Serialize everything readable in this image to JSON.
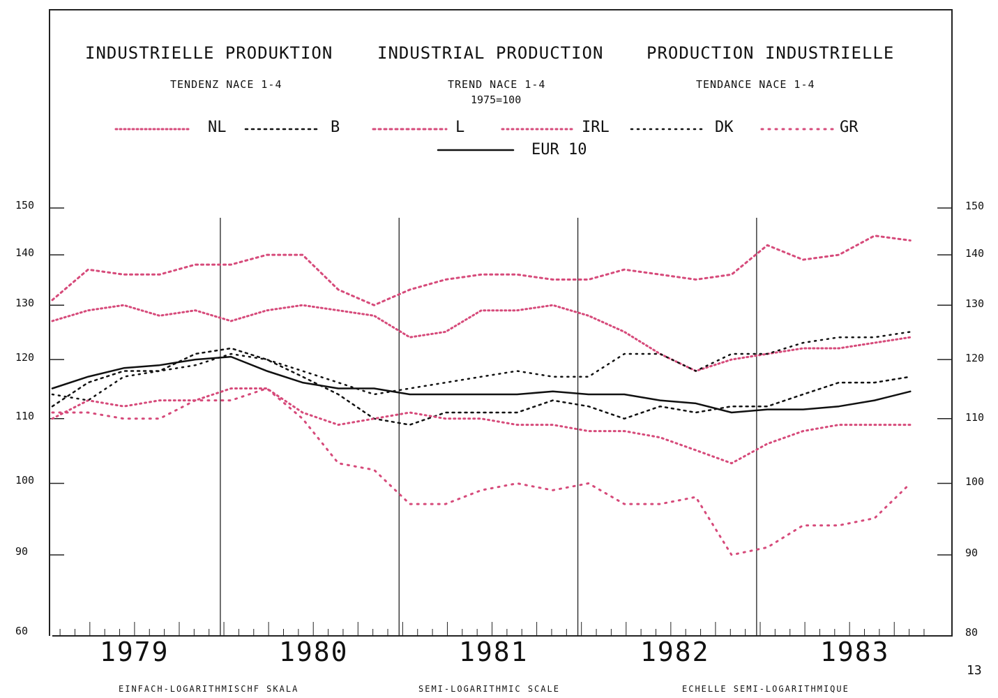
{
  "header": {
    "title_de": "INDUSTRIELLE PRODUKTION",
    "title_en": "INDUSTRIAL PRODUCTION",
    "title_fr": "PRODUCTION INDUSTRIELLE",
    "sub_de": "TENDENZ   NACE 1-4",
    "sub_en": "TREND   NACE 1-4",
    "sub_fr": "TENDANCE   NACE 1-4",
    "base": "1975=100"
  },
  "legend": {
    "nl": "NL",
    "b": "B",
    "l": "L",
    "irl": "IRL",
    "dk": "DK",
    "gr": "GR",
    "eur": "EUR 10"
  },
  "footer": {
    "de": "EINFACH-LOGARITHMISCHF SKALA",
    "en": "SEMI-LOGARITHMIC SCALE",
    "fr": "ECHELLE SEMI-LOGARITHMIQUE",
    "page": "13"
  },
  "axis": {
    "left_ticks": [
      "150",
      "140",
      "130",
      "120",
      "110",
      "100",
      "90",
      "60"
    ],
    "right_ticks": [
      "150",
      "140",
      "130",
      "120",
      "110",
      "100",
      "90",
      "80"
    ]
  },
  "colors": {
    "pink": "#d64a7a",
    "grey": "#8a8a8a",
    "black": "#111111"
  },
  "chart_data": {
    "type": "line",
    "title": "INDUSTRIAL PRODUCTION",
    "scale": "semi-logarithmic",
    "ylim": [
      90,
      150
    ],
    "x_categories": [
      "1979",
      "1980",
      "1981",
      "1982",
      "1983"
    ],
    "x_start": 1979.0,
    "x_end": 1983.83,
    "series": [
      {
        "name": "NL",
        "style": "pink-dotted",
        "x": [
          1979.0,
          1979.2,
          1979.4,
          1979.6,
          1979.8,
          1980.0,
          1980.2,
          1980.4,
          1980.6,
          1980.8,
          1981.0,
          1981.2,
          1981.4,
          1981.6,
          1981.8,
          1982.0,
          1982.2,
          1982.4,
          1982.6,
          1982.8,
          1983.0,
          1983.2,
          1983.4,
          1983.6,
          1983.8
        ],
        "values": [
          127,
          129,
          130,
          128,
          129,
          127,
          129,
          130,
          129,
          128,
          124,
          125,
          129,
          129,
          130,
          128,
          125,
          121,
          118,
          120,
          121,
          122,
          122,
          123,
          124
        ]
      },
      {
        "name": "B",
        "style": "black-cross",
        "x": [
          1979.0,
          1979.2,
          1979.4,
          1979.6,
          1979.8,
          1980.0,
          1980.2,
          1980.4,
          1980.6,
          1980.8,
          1981.0,
          1981.2,
          1981.4,
          1981.6,
          1981.8,
          1982.0,
          1982.2,
          1982.4,
          1982.6,
          1982.8,
          1983.0,
          1983.2,
          1983.4,
          1983.6,
          1983.8
        ],
        "values": [
          112,
          116,
          118,
          118,
          121,
          122,
          120,
          117,
          114,
          110,
          109,
          111,
          111,
          111,
          113,
          112,
          110,
          112,
          111,
          112,
          112,
          114,
          116,
          116,
          117
        ]
      },
      {
        "name": "L",
        "style": "pink-dashed",
        "x": [
          1979.0,
          1979.2,
          1979.4,
          1979.6,
          1979.8,
          1980.0,
          1980.2,
          1980.4,
          1980.6,
          1980.8,
          1981.0,
          1981.2,
          1981.4,
          1981.6,
          1981.8,
          1982.0,
          1982.2,
          1982.4,
          1982.6,
          1982.8,
          1983.0,
          1983.2,
          1983.4,
          1983.6,
          1983.8
        ],
        "values": [
          131,
          137,
          136,
          136,
          138,
          138,
          140,
          140,
          133,
          130,
          133,
          135,
          136,
          136,
          135,
          135,
          137,
          136,
          135,
          136,
          142,
          139,
          140,
          144,
          143
        ]
      },
      {
        "name": "IRL",
        "style": "grey-pink-dotted",
        "x": [
          1979.0,
          1979.2,
          1979.4,
          1979.6,
          1979.8,
          1980.0,
          1980.2,
          1980.4,
          1980.6,
          1980.8,
          1981.0,
          1981.2,
          1981.4,
          1981.6,
          1981.8,
          1982.0,
          1982.2,
          1982.4,
          1982.6,
          1982.8,
          1983.0,
          1983.2,
          1983.4,
          1983.6,
          1983.8
        ],
        "values": [
          110,
          113,
          112,
          113,
          113,
          115,
          115,
          111,
          109,
          110,
          111,
          110,
          110,
          109,
          109,
          108,
          108,
          107,
          105,
          103,
          106,
          108,
          109,
          109,
          109
        ]
      },
      {
        "name": "DK",
        "style": "black-plus",
        "x": [
          1979.0,
          1979.2,
          1979.4,
          1979.6,
          1979.8,
          1980.0,
          1980.2,
          1980.4,
          1980.6,
          1980.8,
          1981.0,
          1981.2,
          1981.4,
          1981.6,
          1981.8,
          1982.0,
          1982.2,
          1982.4,
          1982.6,
          1982.8,
          1983.0,
          1983.2,
          1983.4,
          1983.6,
          1983.8
        ],
        "values": [
          114,
          113,
          117,
          118,
          119,
          121,
          120,
          118,
          116,
          114,
          115,
          116,
          117,
          118,
          117,
          117,
          121,
          121,
          118,
          121,
          121,
          123,
          124,
          124,
          125
        ]
      },
      {
        "name": "GR",
        "style": "pink-sparse-dotted",
        "x": [
          1979.0,
          1979.2,
          1979.4,
          1979.6,
          1979.8,
          1980.0,
          1980.2,
          1980.4,
          1980.6,
          1980.8,
          1981.0,
          1981.2,
          1981.4,
          1981.6,
          1981.8,
          1982.0,
          1982.2,
          1982.4,
          1982.6,
          1982.8,
          1983.0,
          1983.2,
          1983.4,
          1983.6,
          1983.8
        ],
        "values": [
          111,
          111,
          110,
          110,
          113,
          113,
          115,
          110,
          103,
          102,
          97,
          97,
          99,
          100,
          99,
          100,
          97,
          97,
          98,
          90,
          91,
          94,
          94,
          95,
          100
        ]
      },
      {
        "name": "EUR 10",
        "style": "black-solid",
        "x": [
          1979.0,
          1979.2,
          1979.4,
          1979.6,
          1979.8,
          1980.0,
          1980.2,
          1980.4,
          1980.6,
          1980.8,
          1981.0,
          1981.2,
          1981.4,
          1981.6,
          1981.8,
          1982.0,
          1982.2,
          1982.4,
          1982.6,
          1982.8,
          1983.0,
          1983.2,
          1983.4,
          1983.6,
          1983.8
        ],
        "values": [
          115,
          117,
          118.5,
          119,
          120,
          120.5,
          118,
          116,
          115,
          115,
          114,
          114,
          114,
          114,
          114.5,
          114,
          114,
          113,
          112.5,
          111,
          111.5,
          111.5,
          112,
          113,
          114.5
        ]
      }
    ]
  }
}
